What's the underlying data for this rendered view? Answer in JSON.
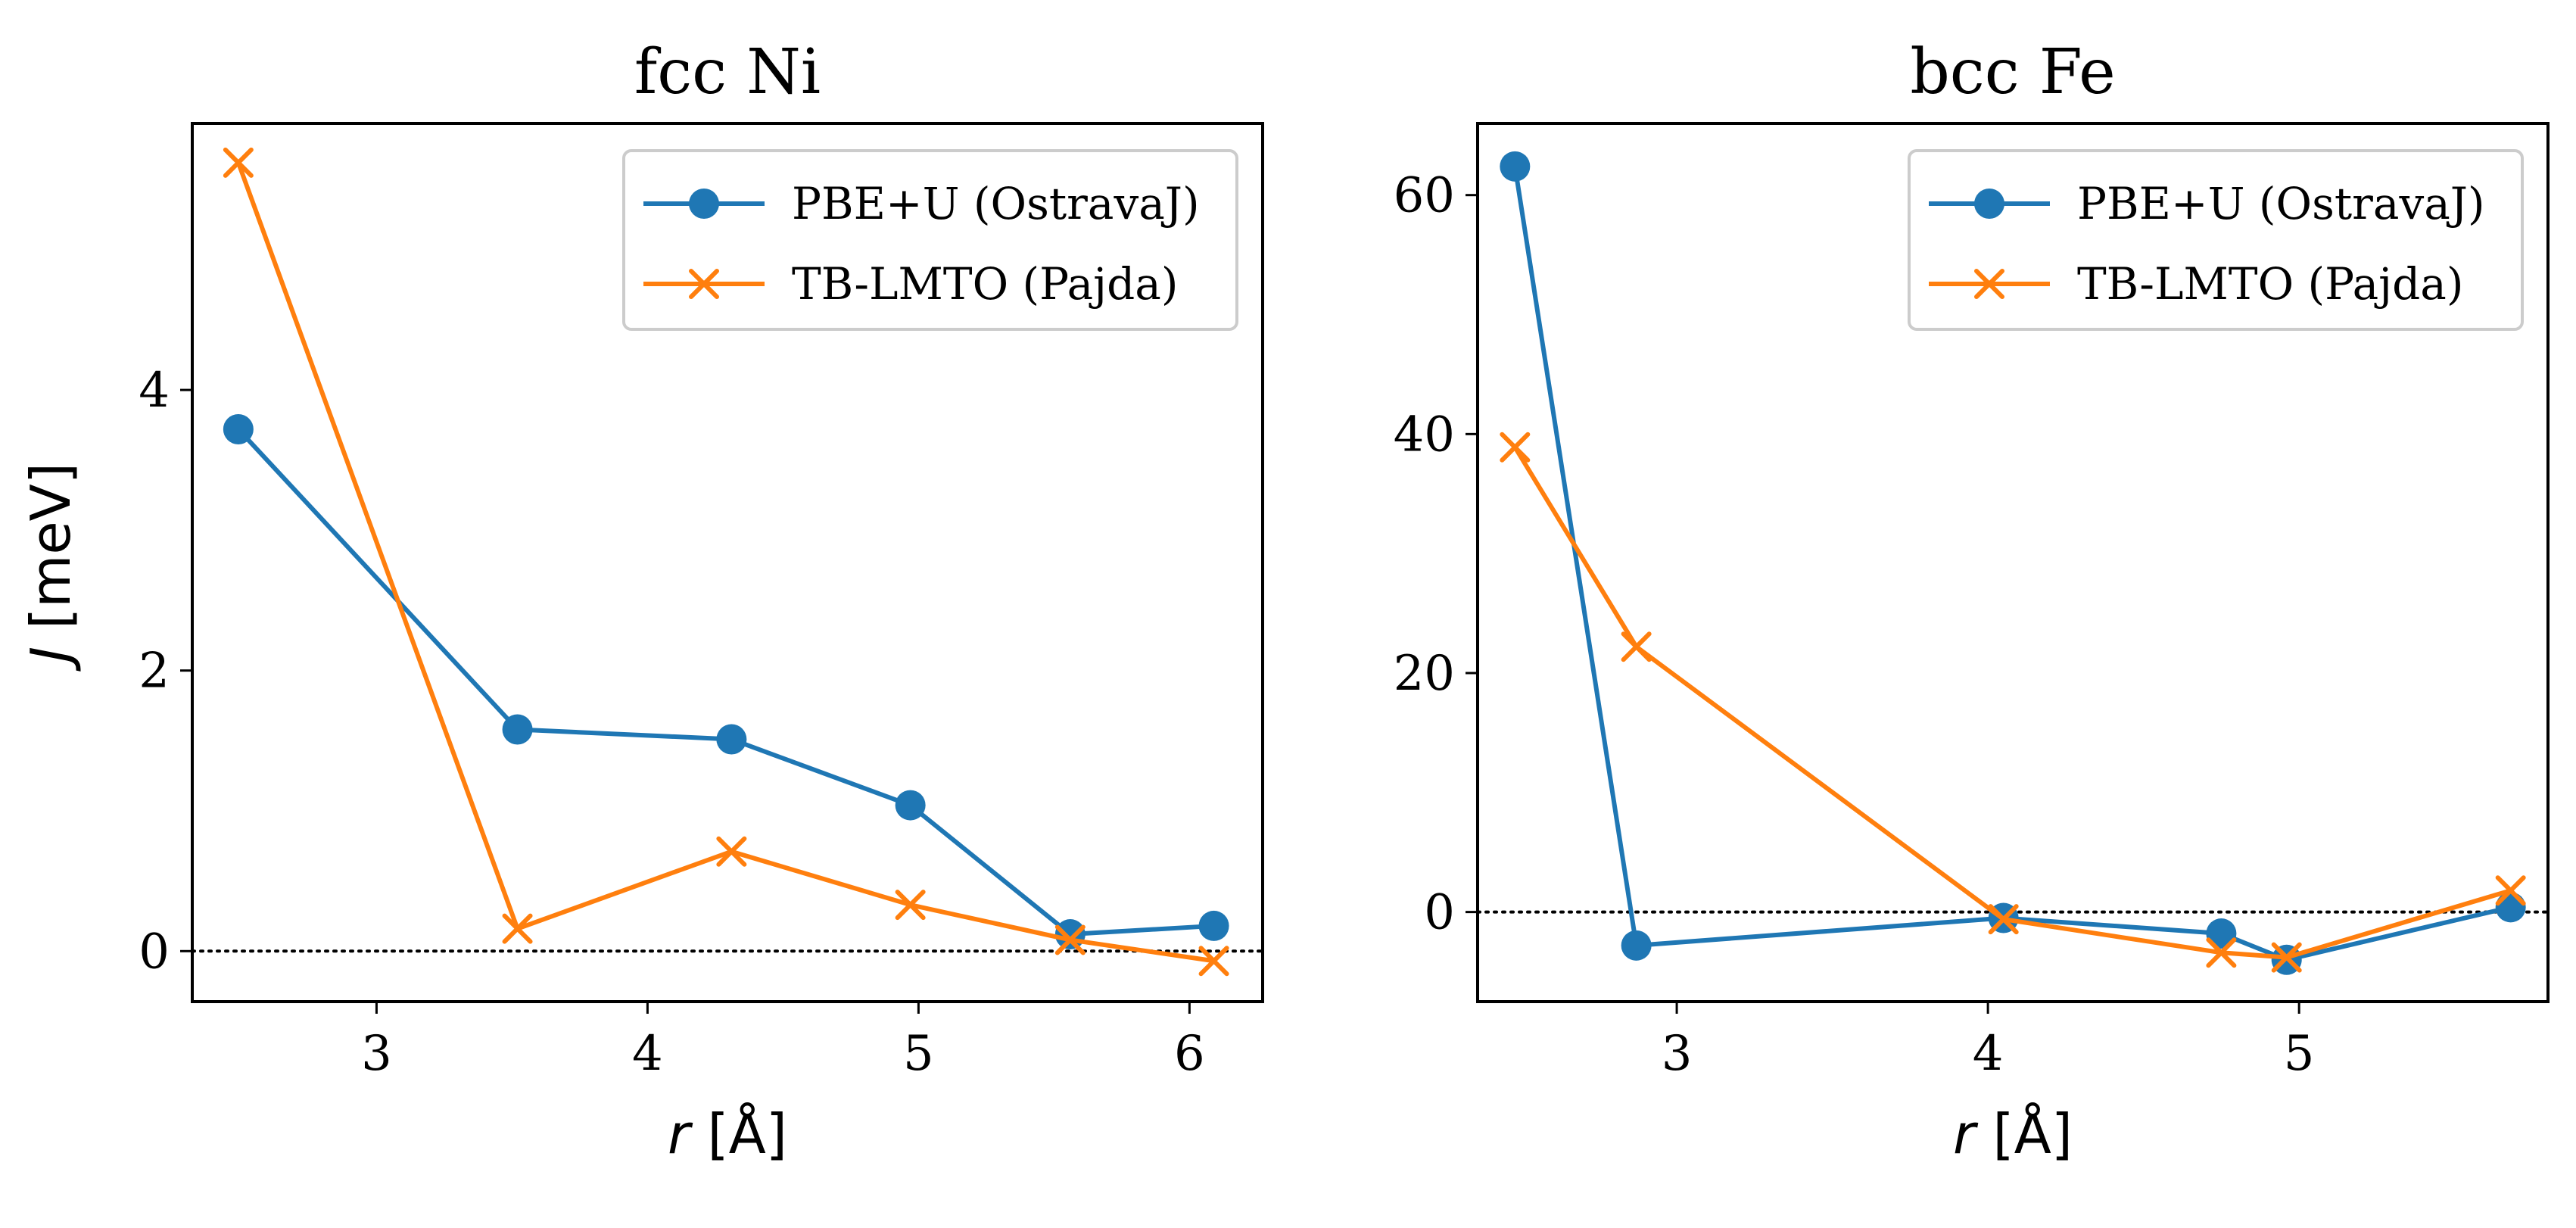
{
  "colors": {
    "pbe": "#1f77b4",
    "tb": "#ff7f0e",
    "zero_line": "#000000"
  },
  "chart_data": [
    {
      "type": "line",
      "title": "fcc Ni",
      "xlabel_var": "r",
      "xlabel_unit": "[Å]",
      "ylabel_var": "J",
      "ylabel_unit": "[meV]",
      "xlim": [
        2.32,
        6.27
      ],
      "ylim": [
        -0.36,
        5.9
      ],
      "xticks": [
        3,
        4,
        5,
        6
      ],
      "yticks": [
        0,
        2,
        4
      ],
      "legend_position": "top-right",
      "series": [
        {
          "name": "PBE+U (OstravaJ)",
          "marker": "circle",
          "color_key": "pbe",
          "x": [
            2.49,
            3.52,
            4.31,
            4.97,
            5.56,
            6.09
          ],
          "y": [
            3.72,
            1.58,
            1.51,
            1.04,
            0.12,
            0.18
          ]
        },
        {
          "name": "TB-LMTO (Pajda)",
          "marker": "x",
          "color_key": "tb",
          "x": [
            2.49,
            3.52,
            4.31,
            4.97,
            5.56,
            6.09
          ],
          "y": [
            5.62,
            0.16,
            0.71,
            0.33,
            0.08,
            -0.07
          ]
        }
      ]
    },
    {
      "type": "line",
      "title": "bcc Fe",
      "xlabel_var": "r",
      "xlabel_unit": "[Å]",
      "ylabel_var": "",
      "ylabel_unit": "",
      "xlim": [
        2.36,
        5.8
      ],
      "ylim": [
        -7.5,
        66
      ],
      "xticks": [
        3,
        4,
        5
      ],
      "yticks": [
        0,
        20,
        40,
        60
      ],
      "legend_position": "top-right",
      "series": [
        {
          "name": "PBE+U (OstravaJ)",
          "marker": "circle",
          "color_key": "pbe",
          "x": [
            2.48,
            2.87,
            4.05,
            4.75,
            4.96,
            5.68
          ],
          "y": [
            62.4,
            -2.8,
            -0.5,
            -1.8,
            -4.0,
            0.4
          ]
        },
        {
          "name": "TB-LMTO (Pajda)",
          "marker": "x",
          "color_key": "tb",
          "x": [
            2.48,
            2.87,
            4.05,
            4.75,
            4.96,
            5.68
          ],
          "y": [
            38.9,
            22.2,
            -0.6,
            -3.4,
            -3.8,
            1.8
          ]
        }
      ]
    }
  ]
}
